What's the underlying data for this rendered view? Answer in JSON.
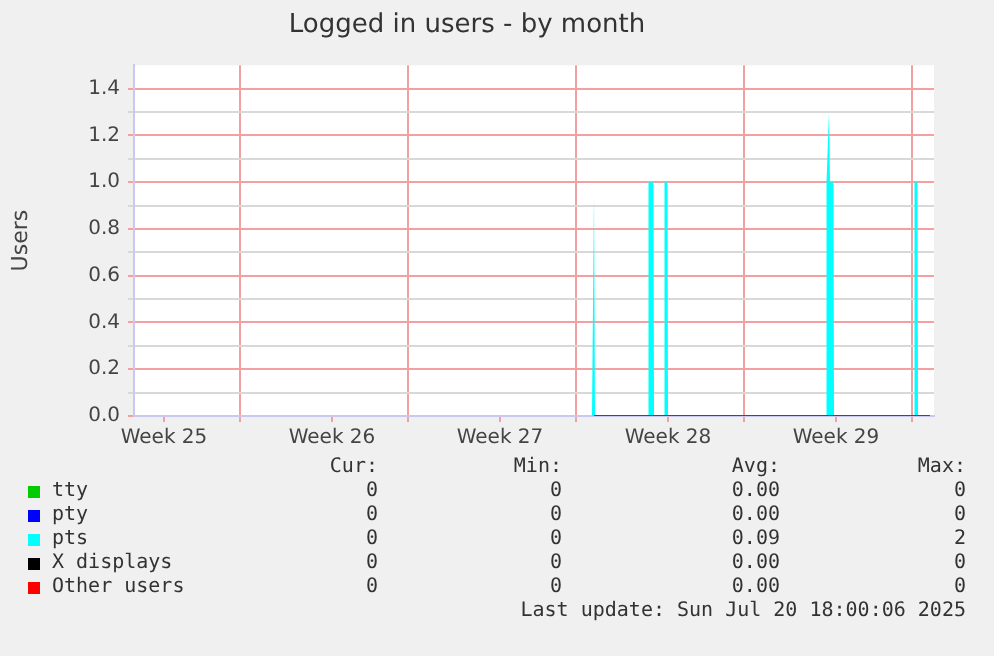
{
  "chart_data": {
    "type": "line",
    "title": "Logged in users - by month",
    "ylabel": "Users",
    "xlim": [
      "2025-06-17T14:00",
      "2025-07-20T22:00"
    ],
    "xticks": [
      {
        "value": "2025-06-18T20:00",
        "label": "Week 25"
      },
      {
        "value": "2025-06-22T00:00",
        "label": null
      },
      {
        "value": "2025-06-25T20:00",
        "label": "Week 26"
      },
      {
        "value": "2025-06-29T00:00",
        "label": null
      },
      {
        "value": "2025-07-02T20:00",
        "label": "Week 27"
      },
      {
        "value": "2025-07-06T00:00",
        "label": null
      },
      {
        "value": "2025-07-09T20:00",
        "label": "Week 28"
      },
      {
        "value": "2025-07-13T00:00",
        "label": null
      },
      {
        "value": "2025-07-16T20:00",
        "label": "Week 29"
      },
      {
        "value": "2025-07-20T00:00",
        "label": null
      }
    ],
    "ylim": [
      0,
      1.5
    ],
    "yticks": [
      {
        "value": 0,
        "label": "0.0"
      },
      {
        "value": 0.1,
        "label": null
      },
      {
        "value": 0.2,
        "label": "0.2"
      },
      {
        "value": 0.3,
        "label": null
      },
      {
        "value": 0.4,
        "label": "0.4"
      },
      {
        "value": 0.5,
        "label": null
      },
      {
        "value": 0.6,
        "label": "0.6"
      },
      {
        "value": 0.7,
        "label": null
      },
      {
        "value": 0.8,
        "label": "0.8"
      },
      {
        "value": 0.9,
        "label": null
      },
      {
        "value": 1,
        "label": "1.0"
      },
      {
        "value": 1.1,
        "label": null
      },
      {
        "value": 1.2,
        "label": "1.2"
      },
      {
        "value": 1.3,
        "label": null
      },
      {
        "value": 1.4,
        "label": "1.4"
      }
    ],
    "grid": true,
    "legend": "bottom",
    "marker": "none",
    "series": [
      {
        "name": "tty",
        "color": "#00cc00"
      },
      {
        "name": "pty",
        "color": "#0000ff"
      },
      {
        "name": "pts",
        "color": "#00ffff",
        "type": "area",
        "x": [
          "2025-07-06T16:00",
          "2025-07-06T18:00",
          "2025-07-06T19:00",
          "2025-07-09T00:00",
          "2025-07-09T00:30",
          "2025-07-09T05:30",
          "2025-07-09T06:00",
          "2025-07-09T16:00",
          "2025-07-09T16:30",
          "2025-07-09T19:30",
          "2025-07-09T20:00",
          "2025-07-16T10:00",
          "2025-07-16T10:30",
          "2025-07-16T13:00",
          "2025-07-16T14:00",
          "2025-07-16T17:30",
          "2025-07-16T18:00",
          "2025-07-20T02:00",
          "2025-07-20T02:30",
          "2025-07-20T05:30",
          "2025-07-20T06:00",
          "2025-07-20T18:00"
        ],
        "values": [
          0,
          0.95,
          0,
          0,
          1,
          1,
          0,
          0,
          1,
          1,
          0,
          0,
          1,
          1.3,
          1,
          1,
          0,
          0,
          1,
          1,
          0,
          0
        ]
      },
      {
        "name": "X displays",
        "color": "#000000"
      },
      {
        "name": "Other users",
        "color": "#ff0000",
        "x": [
          "2025-07-06T18:00",
          "2025-07-20T18:00"
        ],
        "values": [
          0,
          0
        ]
      }
    ],
    "annotations": [
      "Cur:",
      "Min:",
      "Avg:",
      "Max:",
      "0",
      "0",
      "0.00",
      "0",
      "0",
      "0",
      "0.00",
      "0",
      "0",
      "0",
      "0.09",
      "2",
      "0",
      "0",
      "0.00",
      "0",
      "0",
      "0",
      "0.00",
      "0",
      "Last update: Sun Jul 20 18:00:06 2025"
    ]
  }
}
